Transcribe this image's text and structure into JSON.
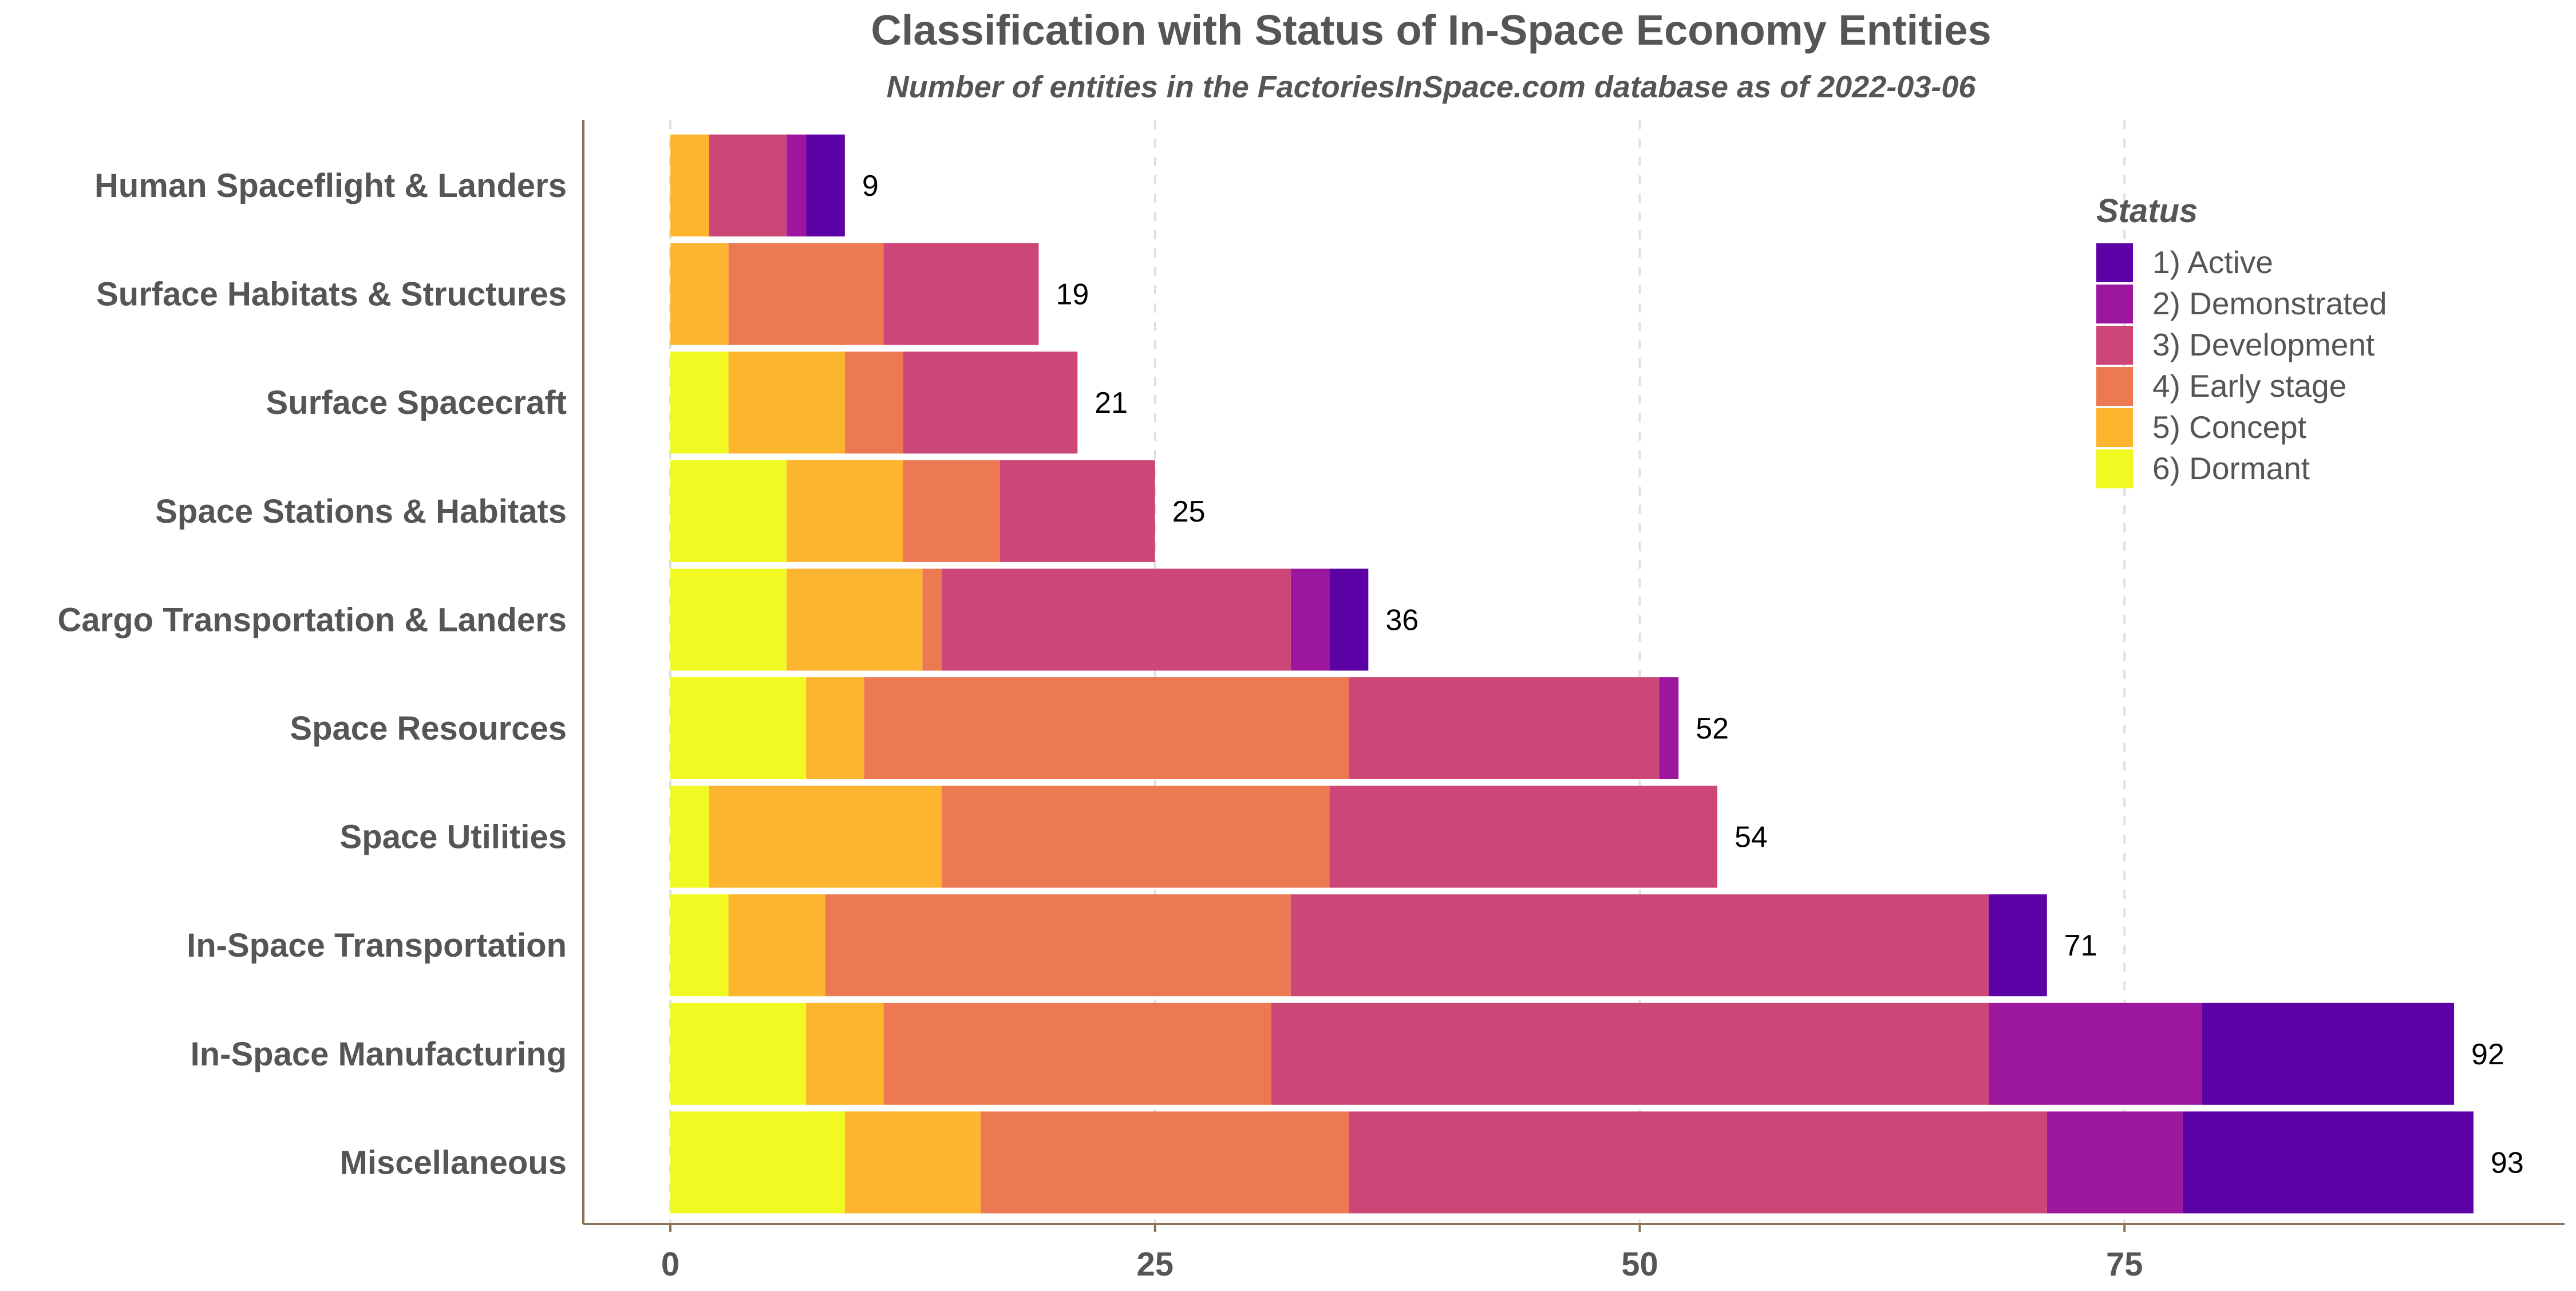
{
  "chart_data": {
    "type": "bar",
    "orientation": "horizontal",
    "stacked": true,
    "title": "Classification with Status of In-Space Economy Entities",
    "subtitle": "Number of entities in the FactoriesInSpace.com database as of 2022-03-06",
    "xlabel": "",
    "ylabel": "",
    "xlim": [
      0,
      97
    ],
    "x_ticks": [
      0,
      25,
      50,
      75
    ],
    "grid": "vertical dashed major",
    "legend": {
      "title": "Status",
      "placement": "top-right"
    },
    "categories": [
      "Human Spaceflight & Landers",
      "Surface Habitats & Structures",
      "Surface Spacecraft",
      "Space Stations & Habitats",
      "Cargo Transportation & Landers",
      "Space Resources",
      "Space Utilities",
      "In-Space Transportation",
      "In-Space Manufacturing",
      "Miscellaneous"
    ],
    "totals": [
      9,
      19,
      21,
      25,
      36,
      52,
      54,
      71,
      92,
      93
    ],
    "series": [
      {
        "name": "6)  Dormant",
        "color": "#F0F921",
        "values": [
          0,
          0,
          3,
          6,
          6,
          7,
          2,
          3,
          7,
          9
        ]
      },
      {
        "name": "5)  Concept",
        "color": "#FDB42F",
        "values": [
          2,
          3,
          6,
          6,
          7,
          3,
          12,
          5,
          4,
          7
        ]
      },
      {
        "name": "4)  Early stage",
        "color": "#ED7953",
        "values": [
          0,
          8,
          3,
          5,
          1,
          25,
          20,
          24,
          20,
          19
        ]
      },
      {
        "name": "3)  Development",
        "color": "#CC4778",
        "values": [
          4,
          8,
          9,
          8,
          18,
          16,
          20,
          36,
          37,
          36
        ]
      },
      {
        "name": "2)  Demonstrated",
        "color": "#9C179E",
        "values": [
          1,
          0,
          0,
          0,
          2,
          1,
          0,
          0,
          11,
          7
        ]
      },
      {
        "name": "1)  Active",
        "color": "#5C01A6",
        "values": [
          2,
          0,
          0,
          0,
          2,
          0,
          0,
          3,
          13,
          15
        ]
      }
    ]
  }
}
